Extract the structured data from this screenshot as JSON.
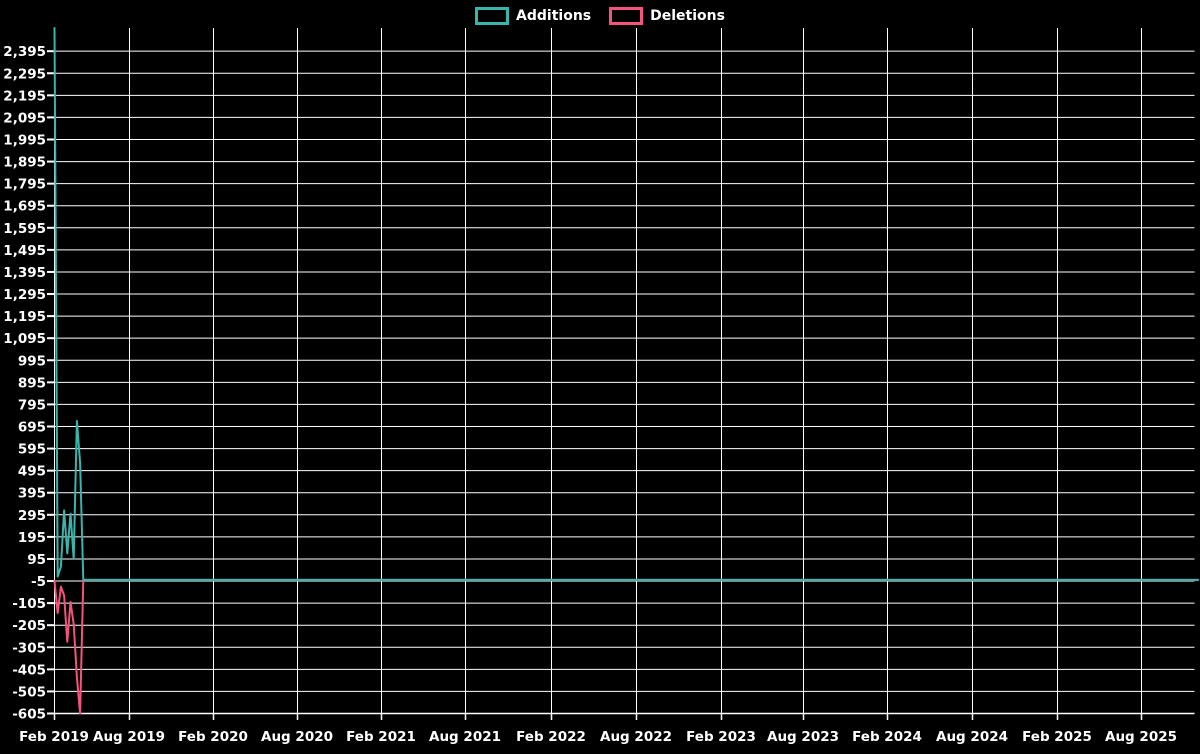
{
  "chart_data": {
    "type": "line",
    "title": "",
    "background_color": "#000000",
    "grid_color": "#ffffff",
    "text_color": "#ffffff",
    "legend": [
      {
        "label": "Additions",
        "color": "#3ab5ac"
      },
      {
        "label": "Deletions",
        "color": "#f4547c"
      }
    ],
    "x_axis": {
      "labels": [
        "Feb 2019",
        "Aug 2019",
        "Feb 2020",
        "Aug 2020",
        "Feb 2021",
        "Aug 2021",
        "Feb 2022",
        "Aug 2022",
        "Feb 2023",
        "Aug 2023",
        "Feb 2024",
        "Aug 2024",
        "Feb 2025",
        "Aug 2025"
      ],
      "tick_x": [
        54,
        129,
        213,
        297,
        381,
        465,
        551,
        636,
        721,
        803,
        887,
        972,
        1057,
        1141
      ]
    },
    "y_axis": {
      "tick_values": [
        2395,
        2295,
        2195,
        2095,
        1995,
        1895,
        1795,
        1695,
        1595,
        1495,
        1395,
        1295,
        1195,
        1095,
        995,
        895,
        795,
        695,
        595,
        495,
        395,
        295,
        195,
        95,
        -5,
        -105,
        -205,
        -305,
        -405,
        -505,
        -605
      ],
      "tick_labels": [
        "2,395",
        "2,295",
        "2,195",
        "2,095",
        "1,995",
        "1,895",
        "1,795",
        "1,695",
        "1,595",
        "1,495",
        "1,395",
        "1,295",
        "1,195",
        "1,095",
        "995",
        "895",
        "795",
        "695",
        "595",
        "495",
        "395",
        "295",
        "195",
        "95",
        "-5",
        "-105",
        "-205",
        "-305",
        "-405",
        "-505",
        "-605"
      ],
      "range": [
        -605,
        2500
      ]
    },
    "series": [
      {
        "name": "Deletions",
        "color": "#f4547c",
        "active_weekly_values": [
          -5,
          -150,
          -30,
          -70,
          -280,
          -100,
          -200,
          -440,
          -605,
          0
        ],
        "flat_value": 0
      },
      {
        "name": "Additions",
        "color": "#3ab5ac",
        "active_weekly_values": [
          2500,
          15,
          60,
          315,
          120,
          300,
          95,
          720,
          530,
          0
        ],
        "flat_value": 0
      }
    ],
    "weeks_total": 357,
    "legend_position": "top-center",
    "grid": true
  }
}
